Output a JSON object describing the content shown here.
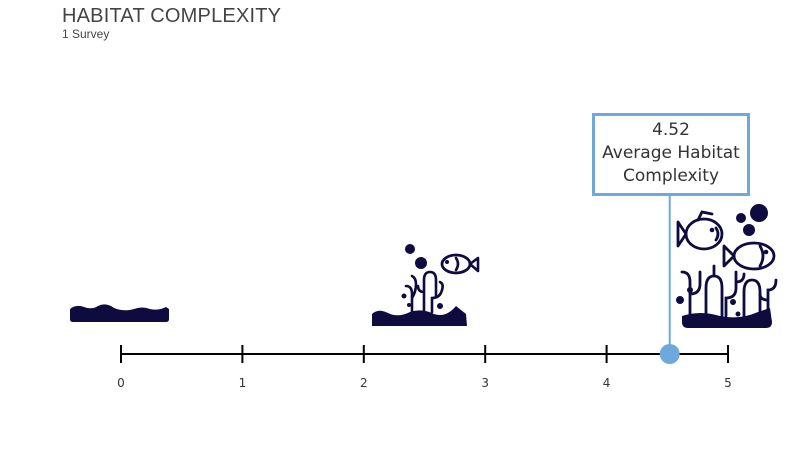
{
  "title": "HABITAT COMPLEXITY",
  "subtitle": "1 Survey",
  "chart_data": {
    "type": "scatter",
    "xlim": [
      0,
      5
    ],
    "ticks": [
      "0",
      "1",
      "2",
      "3",
      "4",
      "5"
    ],
    "marker": {
      "value": 4.52,
      "value_label": "4.52",
      "label_line1": "Average Habitat",
      "label_line2": "Complexity"
    },
    "icons": [
      {
        "name": "flat-seabed-icon",
        "at": 0
      },
      {
        "name": "simple-reef-icon",
        "at": 2.5
      },
      {
        "name": "complex-reef-icon",
        "at": 5
      }
    ]
  },
  "colors": {
    "axis": "#000000",
    "marker": "#6FA8DC",
    "icon": "#0E0B3F",
    "text": "#444444"
  }
}
